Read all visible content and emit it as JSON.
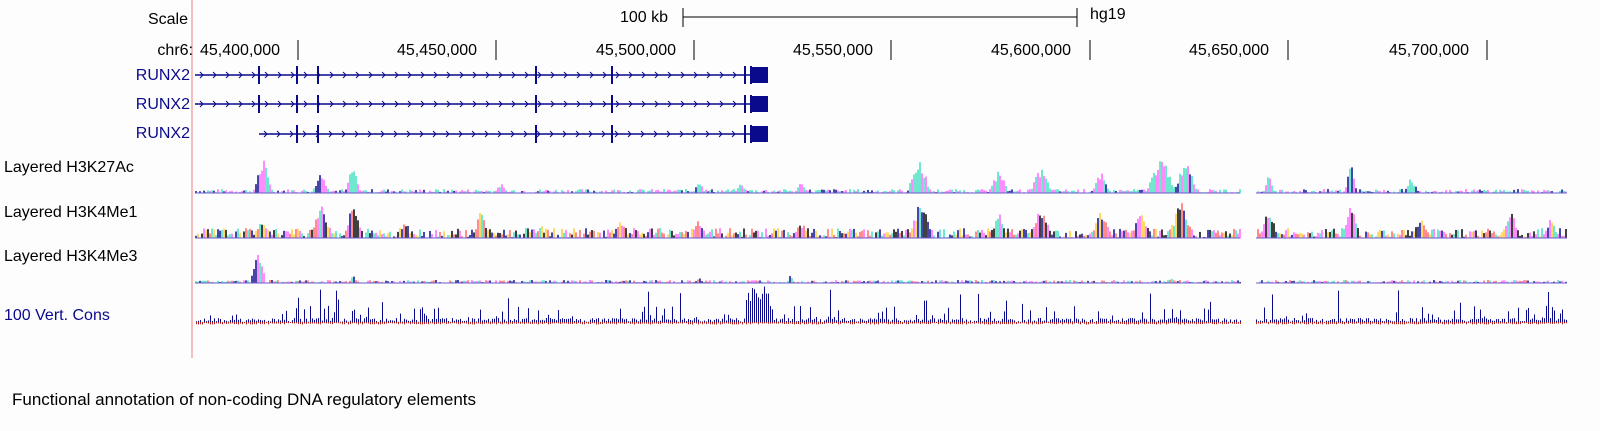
{
  "header": {
    "scale_label": "Scale",
    "scale_bar_label": "100 kb",
    "assembly": "hg19",
    "chrom_label": "chr6:"
  },
  "ruler": {
    "ticks": [
      "45,400,000",
      "45,450,000",
      "45,500,000",
      "45,550,000",
      "45,600,000",
      "45,650,000",
      "45,700,000"
    ]
  },
  "genes": [
    {
      "name": "RUNX2"
    },
    {
      "name": "RUNX2"
    },
    {
      "name": "RUNX2"
    }
  ],
  "tracks": [
    {
      "name": "Layered H3K27Ac",
      "color": "#000000"
    },
    {
      "name": "Layered H3K4Me1",
      "color": "#000000"
    },
    {
      "name": "Layered H3K4Me3",
      "color": "#000000"
    },
    {
      "name": "100 Vert. Cons",
      "color": "#0a0a8c"
    }
  ],
  "colors": {
    "gene": "#0a0a8c",
    "margin_line": "#f08080",
    "cons_pos": "#0a0a8c",
    "cons_neg": "#b22222",
    "layers": [
      "#40e0c0",
      "#ff66ff",
      "#0a0a8c",
      "#ff6666",
      "#000000",
      "#ffcc33"
    ]
  },
  "caption": "Functional annotation of non-coding DNA regulatory elements"
}
